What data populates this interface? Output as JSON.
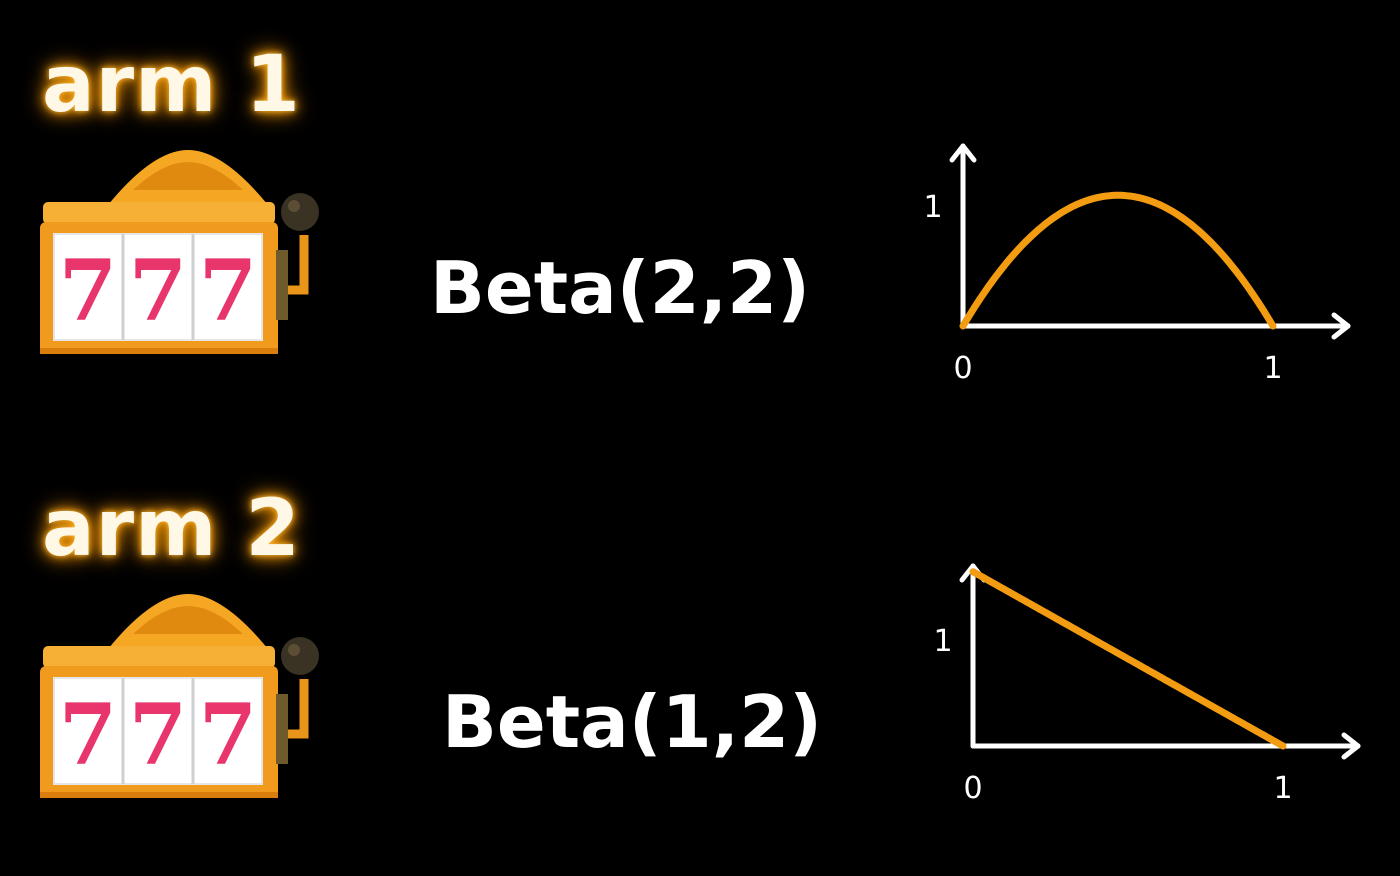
{
  "arms": [
    {
      "label": "arm 1",
      "distribution": "Beta(2,2)",
      "plot": {
        "type": "line",
        "alpha": 2,
        "beta": 2,
        "x_ticks": [
          "0",
          "1"
        ],
        "y_ticks": [
          "1"
        ],
        "xlim": [
          0,
          1
        ],
        "ylim": [
          0,
          2.1
        ]
      }
    },
    {
      "label": "arm 2",
      "distribution": "Beta(1,2)",
      "plot": {
        "type": "line",
        "alpha": 1,
        "beta": 2,
        "x_ticks": [
          "0",
          "1"
        ],
        "y_ticks": [
          "1"
        ],
        "xlim": [
          0,
          1
        ],
        "ylim": [
          0,
          2.1
        ]
      }
    }
  ],
  "slot_machine": {
    "reels": [
      "7",
      "7",
      "7"
    ],
    "colors": {
      "body": "#F09A1E",
      "reel_digit": "#E8356B",
      "lever_knob": "#3A3222"
    }
  },
  "colors": {
    "background": "#000000",
    "curve": "#F39C12",
    "axis": "#FFFFFF"
  }
}
